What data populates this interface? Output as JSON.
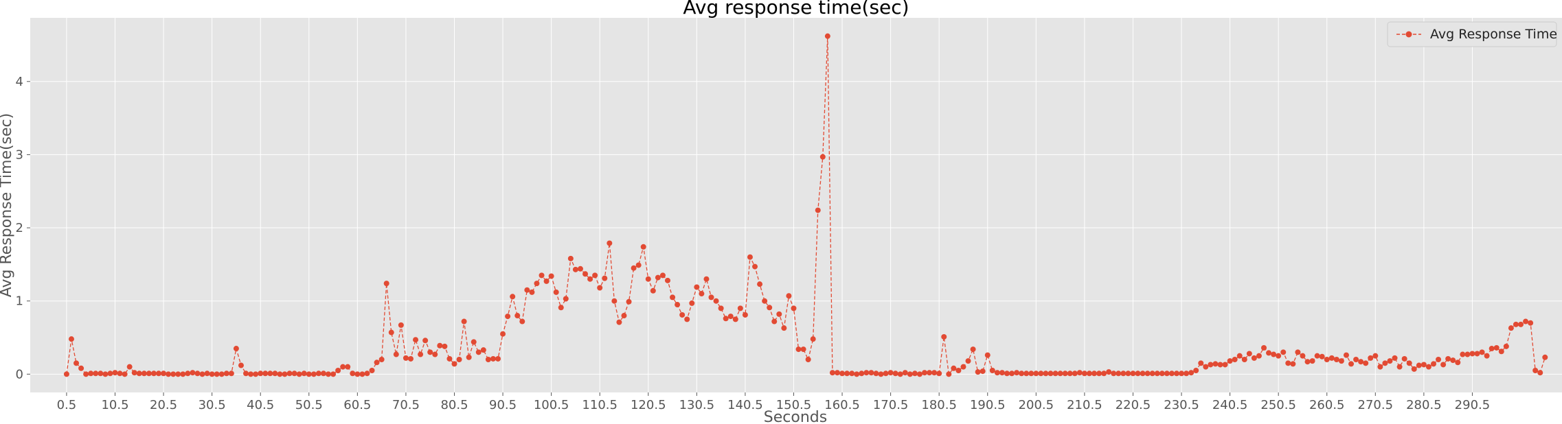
{
  "chart_data": {
    "type": "line",
    "title": "Avg response time(sec)",
    "xlabel": "Seconds",
    "ylabel": "Avg Response Time(sec)",
    "xlim": [
      -7,
      309
    ],
    "ylim": [
      -0.25,
      4.87
    ],
    "grid": true,
    "legend_position": "top-right",
    "xtick_labels": [
      "0.5",
      "10.5",
      "20.5",
      "30.5",
      "40.5",
      "50.5",
      "60.5",
      "70.5",
      "80.5",
      "90.5",
      "100.5",
      "110.5",
      "120.5",
      "130.5",
      "140.5",
      "150.5",
      "160.5",
      "170.5",
      "180.5",
      "190.5",
      "200.5",
      "210.5",
      "220.5",
      "230.5",
      "240.5",
      "250.5",
      "260.5",
      "270.5",
      "280.5",
      "290.5"
    ],
    "yticks": [
      0,
      1,
      2,
      3,
      4
    ],
    "series": [
      {
        "name": "Avg Response Time",
        "color": "#E24A33",
        "line_style": "dashed",
        "marker": "circle",
        "x_start": 0.5,
        "x_step": 1,
        "values": [
          0.0,
          0.48,
          0.15,
          0.08,
          0.0,
          0.01,
          0.01,
          0.01,
          0.0,
          0.01,
          0.02,
          0.01,
          0.0,
          0.1,
          0.02,
          0.01,
          0.01,
          0.01,
          0.01,
          0.01,
          0.01,
          0.0,
          0.0,
          0.0,
          0.0,
          0.01,
          0.02,
          0.01,
          0.0,
          0.01,
          0.0,
          0.0,
          0.0,
          0.01,
          0.01,
          0.35,
          0.12,
          0.01,
          0.0,
          0.0,
          0.01,
          0.01,
          0.01,
          0.01,
          0.0,
          0.0,
          0.01,
          0.01,
          0.0,
          0.01,
          0.0,
          0.0,
          0.01,
          0.01,
          0.0,
          0.0,
          0.05,
          0.1,
          0.1,
          0.01,
          0.0,
          0.0,
          0.01,
          0.05,
          0.16,
          0.2,
          1.24,
          0.57,
          0.27,
          0.67,
          0.22,
          0.21,
          0.47,
          0.27,
          0.46,
          0.3,
          0.27,
          0.39,
          0.38,
          0.21,
          0.14,
          0.2,
          0.72,
          0.23,
          0.44,
          0.3,
          0.33,
          0.2,
          0.21,
          0.21,
          0.55,
          0.79,
          1.06,
          0.8,
          0.72,
          1.15,
          1.12,
          1.24,
          1.35,
          1.27,
          1.34,
          1.12,
          0.91,
          1.03,
          1.58,
          1.43,
          1.44,
          1.37,
          1.3,
          1.35,
          1.18,
          1.31,
          1.79,
          1.0,
          0.71,
          0.8,
          0.99,
          1.45,
          1.49,
          1.74,
          1.3,
          1.14,
          1.32,
          1.35,
          1.28,
          1.05,
          0.95,
          0.81,
          0.75,
          0.97,
          1.19,
          1.1,
          1.3,
          1.05,
          1.0,
          0.9,
          0.76,
          0.79,
          0.75,
          0.9,
          0.81,
          1.6,
          1.47,
          1.23,
          1.0,
          0.91,
          0.72,
          0.82,
          0.63,
          1.07,
          0.9,
          0.34,
          0.34,
          0.2,
          0.48,
          2.24,
          2.97,
          4.62,
          0.02,
          0.02,
          0.01,
          0.01,
          0.01,
          0.0,
          0.01,
          0.02,
          0.02,
          0.01,
          0.0,
          0.01,
          0.02,
          0.01,
          0.0,
          0.02,
          0.0,
          0.01,
          0.0,
          0.02,
          0.02,
          0.02,
          0.01,
          0.51,
          0.0,
          0.08,
          0.05,
          0.1,
          0.18,
          0.34,
          0.03,
          0.04,
          0.26,
          0.05,
          0.02,
          0.02,
          0.01,
          0.01,
          0.02,
          0.01,
          0.01,
          0.01,
          0.01,
          0.01,
          0.01,
          0.01,
          0.01,
          0.01,
          0.01,
          0.01,
          0.01,
          0.02,
          0.01,
          0.01,
          0.01,
          0.01,
          0.01,
          0.03,
          0.01,
          0.01,
          0.01,
          0.01,
          0.01,
          0.01,
          0.01,
          0.01,
          0.01,
          0.01,
          0.01,
          0.01,
          0.01,
          0.01,
          0.01,
          0.01,
          0.02,
          0.05,
          0.15,
          0.1,
          0.13,
          0.14,
          0.13,
          0.13,
          0.18,
          0.2,
          0.25,
          0.2,
          0.28,
          0.22,
          0.25,
          0.36,
          0.29,
          0.27,
          0.25,
          0.3,
          0.15,
          0.14,
          0.3,
          0.25,
          0.17,
          0.18,
          0.25,
          0.24,
          0.2,
          0.22,
          0.2,
          0.18,
          0.26,
          0.14,
          0.2,
          0.17,
          0.15,
          0.22,
          0.25,
          0.1,
          0.15,
          0.18,
          0.22,
          0.1,
          0.21,
          0.15,
          0.07,
          0.12,
          0.13,
          0.1,
          0.14,
          0.2,
          0.13,
          0.21,
          0.19,
          0.16,
          0.27,
          0.27,
          0.28,
          0.28,
          0.3,
          0.25,
          0.35,
          0.36,
          0.31,
          0.38,
          0.63,
          0.68,
          0.68,
          0.72,
          0.7,
          0.05,
          0.02,
          0.23
        ]
      }
    ]
  }
}
